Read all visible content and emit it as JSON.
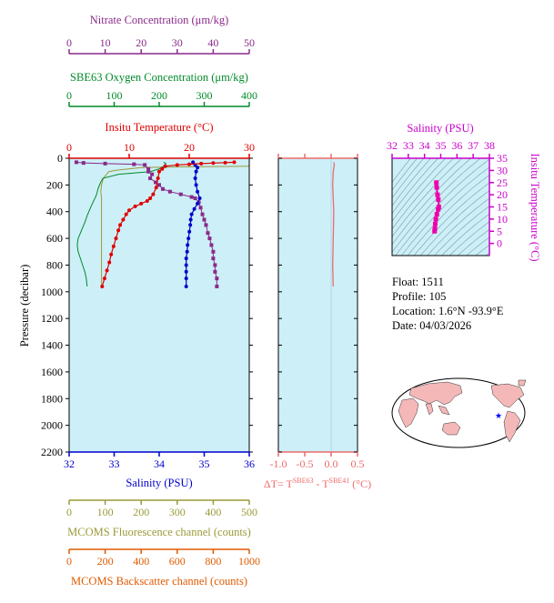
{
  "colors": {
    "nitrate": "#8a2a8a",
    "oxygen": "#008a2a",
    "temperature": "#e00000",
    "salinity": "#0000cc",
    "fluorescence": "#9a9a3a",
    "backscatter": "#e05a00",
    "delta": "#ee6a6a",
    "ts": "#ee00aa",
    "plot_bg": "#cdeff7",
    "land": "#f4b8b8"
  },
  "chart_data": [
    {
      "type": "line",
      "name": "main-profile",
      "ylabel": "Pressure (decibar)",
      "ylim": [
        2200,
        0
      ],
      "yticks": [
        0,
        200,
        400,
        600,
        800,
        1000,
        1200,
        1400,
        1600,
        1800,
        2000,
        2200
      ],
      "axes": {
        "nitrate": {
          "label": "Nitrate Concentration (μm/kg)",
          "range": [
            0,
            50
          ],
          "ticks": [
            0,
            10,
            20,
            30,
            40,
            50
          ]
        },
        "oxygen": {
          "label": "SBE63 Oxygen Concentration (μm/kg)",
          "range": [
            0,
            400
          ],
          "ticks": [
            0,
            100,
            200,
            300,
            400
          ]
        },
        "temperature": {
          "label": "Insitu Temperature (°C)",
          "range": [
            0,
            30
          ],
          "ticks": [
            0,
            10,
            20,
            30
          ]
        },
        "salinity": {
          "label": "Salinity (PSU)",
          "range": [
            32,
            36
          ],
          "ticks": [
            32,
            33,
            34,
            35,
            36
          ]
        },
        "fluorescence": {
          "label": "MCOMS Fluorescence channel (counts)",
          "range": [
            0,
            500
          ],
          "ticks": [
            0,
            100,
            200,
            300,
            400,
            500
          ]
        },
        "backscatter": {
          "label": "MCOMS Backscatter channel (counts)",
          "range": [
            0,
            1000
          ],
          "ticks": [
            0,
            200,
            400,
            600,
            800,
            1000
          ]
        }
      },
      "series": {
        "temperature": [
          [
            27.5,
            30
          ],
          [
            26,
            33
          ],
          [
            24,
            36
          ],
          [
            22,
            40
          ],
          [
            20,
            45
          ],
          [
            18,
            50
          ],
          [
            16,
            60
          ],
          [
            15.5,
            80
          ],
          [
            15,
            100
          ],
          [
            14.8,
            150
          ],
          [
            14.5,
            220
          ],
          [
            14,
            270
          ],
          [
            13.5,
            300
          ],
          [
            13,
            320
          ],
          [
            12,
            340
          ],
          [
            11,
            360
          ],
          [
            10,
            390
          ],
          [
            9.5,
            420
          ],
          [
            9,
            460
          ],
          [
            8.5,
            500
          ],
          [
            8.2,
            540
          ],
          [
            7.8,
            600
          ],
          [
            7.4,
            660
          ],
          [
            7,
            720
          ],
          [
            6.7,
            780
          ],
          [
            6.3,
            840
          ],
          [
            5.9,
            900
          ],
          [
            5.5,
            960
          ]
        ],
        "salinity": [
          [
            34.75,
            30
          ],
          [
            34.8,
            50
          ],
          [
            34.85,
            70
          ],
          [
            34.82,
            100
          ],
          [
            34.8,
            150
          ],
          [
            34.82,
            200
          ],
          [
            34.85,
            250
          ],
          [
            34.9,
            300
          ],
          [
            34.85,
            340
          ],
          [
            34.78,
            380
          ],
          [
            34.72,
            420
          ],
          [
            34.7,
            460
          ],
          [
            34.69,
            500
          ],
          [
            34.67,
            550
          ],
          [
            34.65,
            600
          ],
          [
            34.63,
            650
          ],
          [
            34.62,
            700
          ],
          [
            34.6,
            750
          ],
          [
            34.6,
            800
          ],
          [
            34.6,
            850
          ],
          [
            34.6,
            900
          ],
          [
            34.6,
            960
          ]
        ],
        "nitrate": [
          [
            2,
            30
          ],
          [
            4,
            35
          ],
          [
            10,
            40
          ],
          [
            18,
            45
          ],
          [
            21,
            50
          ],
          [
            22,
            80
          ],
          [
            22,
            100
          ],
          [
            23,
            120
          ],
          [
            22.5,
            150
          ],
          [
            24,
            180
          ],
          [
            25,
            200
          ],
          [
            26,
            230
          ],
          [
            28,
            250
          ],
          [
            31,
            270
          ],
          [
            34,
            290
          ],
          [
            35,
            300
          ],
          [
            36,
            330
          ],
          [
            36.5,
            370
          ],
          [
            37,
            420
          ],
          [
            37.5,
            460
          ],
          [
            38,
            500
          ],
          [
            38.5,
            560
          ],
          [
            39,
            600
          ],
          [
            39.5,
            650
          ],
          [
            40,
            700
          ],
          [
            40,
            750
          ],
          [
            40.5,
            800
          ],
          [
            40.5,
            850
          ],
          [
            41,
            900
          ],
          [
            41,
            960
          ]
        ],
        "oxygen": [
          [
            210,
            30
          ],
          [
            215,
            40
          ],
          [
            210,
            60
          ],
          [
            200,
            80
          ],
          [
            180,
            100
          ],
          [
            110,
            120
          ],
          [
            75,
            150
          ],
          [
            70,
            180
          ],
          [
            65,
            220
          ],
          [
            60,
            280
          ],
          [
            50,
            350
          ],
          [
            40,
            430
          ],
          [
            35,
            480
          ],
          [
            30,
            520
          ],
          [
            25,
            560
          ],
          [
            20,
            600
          ],
          [
            18,
            650
          ],
          [
            20,
            700
          ],
          [
            25,
            750
          ],
          [
            30,
            800
          ],
          [
            35,
            850
          ],
          [
            38,
            900
          ],
          [
            40,
            960
          ]
        ],
        "fluorescence": [
          [
            500,
            60
          ],
          [
            400,
            62
          ],
          [
            300,
            65
          ],
          [
            200,
            70
          ],
          [
            130,
            90
          ],
          [
            110,
            100
          ],
          [
            95,
            150
          ],
          [
            90,
            200
          ],
          [
            88,
            250
          ],
          [
            90,
            300
          ],
          [
            90,
            400
          ],
          [
            90,
            500
          ],
          [
            90,
            600
          ],
          [
            90,
            700
          ],
          [
            90,
            800
          ],
          [
            90,
            900
          ],
          [
            90,
            960
          ]
        ]
      }
    },
    {
      "type": "line",
      "name": "delta-temperature",
      "xlabel": "ΔT= T",
      "xlabel_sup1": "SBE63",
      "xlabel_mid": " - T",
      "xlabel_sup2": "SBE41",
      "xlabel_unit": " (°C)",
      "xlim": [
        -1.0,
        0.5
      ],
      "xticks": [
        "-1.0",
        "-0.5",
        "0.0",
        "0.5"
      ],
      "ylim": [
        2200,
        0
      ],
      "series": [
        [
          0.05,
          30
        ],
        [
          0.06,
          50
        ],
        [
          0.04,
          100
        ],
        [
          0.03,
          200
        ],
        [
          0.05,
          400
        ],
        [
          0.04,
          600
        ],
        [
          0.03,
          800
        ],
        [
          0.04,
          960
        ]
      ]
    },
    {
      "type": "scatter",
      "name": "ts-diagram",
      "title": "Salinity (PSU)",
      "ylabel": "Insitu Temperature (°C)",
      "xlim": [
        32,
        38
      ],
      "ylim": [
        -5,
        35
      ],
      "xticks": [
        32,
        33,
        34,
        35,
        36,
        37,
        38
      ],
      "yticks": [
        0,
        5,
        10,
        15,
        20,
        25,
        30,
        35
      ],
      "series": [
        [
          34.62,
          5
        ],
        [
          34.64,
          6
        ],
        [
          34.66,
          8
        ],
        [
          34.7,
          10
        ],
        [
          34.76,
          12
        ],
        [
          34.84,
          14
        ],
        [
          34.88,
          15
        ],
        [
          34.85,
          18
        ],
        [
          34.8,
          20
        ],
        [
          34.75,
          23
        ],
        [
          34.73,
          25
        ]
      ]
    }
  ],
  "info": {
    "float": "Float:  1511",
    "profile": "Profile:  105",
    "location": "Location:  1.6°N  -93.9°E",
    "date": "Date:  04/03/2026"
  },
  "map": {
    "marker_lon": -93.9,
    "marker_lat": 1.6,
    "marker_glyph": "★"
  }
}
